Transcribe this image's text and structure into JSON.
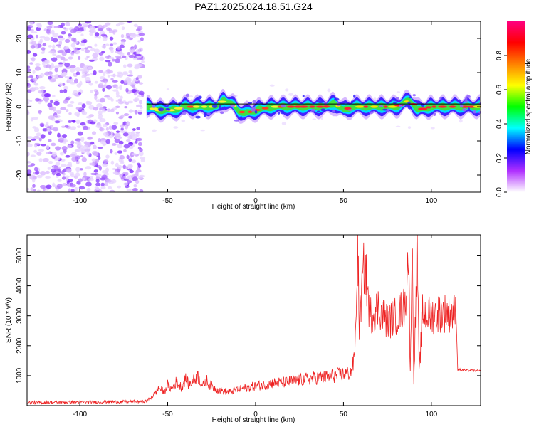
{
  "figure": {
    "title": "PAZ1.2025.024.18.51.G24"
  },
  "chart_data": [
    {
      "type": "heatmap",
      "title": "PAZ1.2025.024.18.51.G24",
      "xlabel": "Height of straight line (km)",
      "ylabel": "Frequency (Hz)",
      "xlim": [
        -130,
        128
      ],
      "ylim": [
        -25,
        25
      ],
      "xticks": [
        -100,
        -50,
        0,
        50,
        100
      ],
      "yticks": [
        -20,
        -10,
        0,
        10,
        20
      ],
      "grid": false,
      "ridge_reference_frequency": 0.8,
      "ridge_x": [
        -62,
        -55,
        -48,
        -40,
        -30,
        -22,
        -18,
        -14,
        -10,
        -6,
        0,
        10,
        20,
        30,
        40,
        45,
        50,
        55,
        60,
        70,
        80,
        88,
        92,
        100,
        110,
        120,
        128
      ],
      "ridge_frequency": [
        0,
        -1,
        -1,
        0,
        0,
        0,
        2,
        1,
        -1,
        -2,
        -1,
        0,
        0,
        0,
        0,
        1,
        -1,
        0,
        0,
        0,
        0,
        2,
        -1,
        0,
        0,
        0,
        0
      ],
      "noise_region_x": [
        -130,
        -64
      ],
      "colorbar": {
        "label": "Normalized spectral amplitude",
        "range": [
          0.0,
          1.0
        ],
        "ticks": [
          "0.0",
          "0.2",
          "0.4",
          "0.6",
          "0.8"
        ],
        "colors": [
          "#ffffff",
          "#b030ff",
          "#0000ff",
          "#00ffff",
          "#00ff00",
          "#ffff00",
          "#ff8000",
          "#ff0000",
          "#ff0080"
        ]
      }
    },
    {
      "type": "line",
      "xlabel": "Height of straight line (km)",
      "ylabel": "SNR (10 * v/v)",
      "xlim": [
        -130,
        128
      ],
      "ylim": [
        0,
        5700
      ],
      "xticks": [
        -100,
        -50,
        0,
        50,
        100
      ],
      "yticks": [
        1000,
        2000,
        3000,
        4000,
        5000
      ],
      "grid": false,
      "color": "#ee2222",
      "x": [
        -130,
        -100,
        -70,
        -62,
        -58,
        -55,
        -52,
        -50,
        -48,
        -45,
        -42,
        -40,
        -38,
        -35,
        -33,
        -30,
        -28,
        -26,
        -24,
        -20,
        -15,
        -10,
        -5,
        0,
        10,
        20,
        30,
        40,
        50,
        54,
        56,
        57,
        58,
        59,
        60,
        62,
        65,
        70,
        75,
        80,
        85,
        87,
        88,
        89,
        90,
        91,
        92,
        93,
        95,
        100,
        105,
        110,
        114,
        115,
        116,
        120,
        128
      ],
      "y": [
        100,
        120,
        130,
        150,
        350,
        600,
        450,
        700,
        550,
        800,
        600,
        900,
        700,
        850,
        1000,
        650,
        850,
        700,
        600,
        500,
        450,
        550,
        600,
        650,
        750,
        800,
        900,
        950,
        1050,
        1100,
        1500,
        2500,
        5700,
        2600,
        3500,
        4800,
        3000,
        3300,
        2800,
        3000,
        3300,
        5200,
        1000,
        5700,
        900,
        3000,
        5500,
        1000,
        3100,
        3000,
        3100,
        3100,
        3100,
        1200,
        1200,
        1180,
        1150
      ]
    }
  ]
}
